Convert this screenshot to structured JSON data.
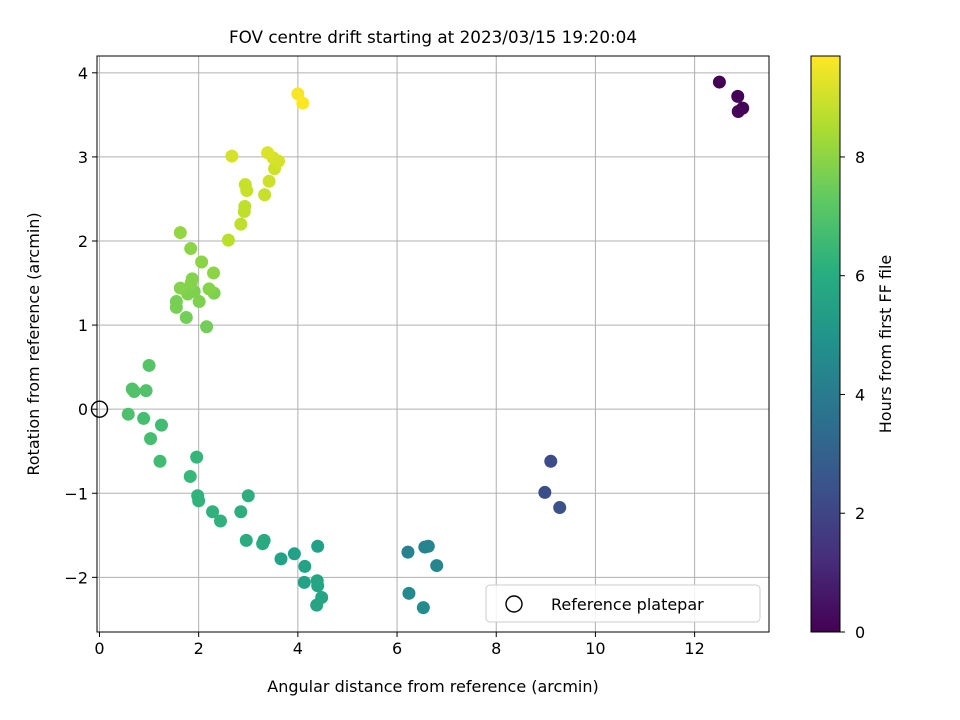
{
  "chart_data": {
    "type": "scatter",
    "title": "FOV centre drift starting at 2023/03/15 19:20:04",
    "xlabel": "Angular distance from reference (arcmin)",
    "ylabel": "Rotation from reference (arcmin)",
    "xlim": [
      -0.05,
      13.5
    ],
    "ylim": [
      -2.65,
      4.2
    ],
    "xticks": [
      0,
      2,
      4,
      6,
      8,
      10,
      12
    ],
    "yticks": [
      -2,
      -1,
      0,
      1,
      2,
      3,
      4
    ],
    "grid": true,
    "legend": {
      "placement": "lower-right",
      "entries": [
        "Reference platepar"
      ]
    },
    "reference_point": {
      "x": 0,
      "y": 0,
      "label": "Reference platepar"
    },
    "colorbar": {
      "label": "Hours from first FF file",
      "colormap": "viridis",
      "range": [
        0,
        9.7
      ],
      "ticks": [
        0,
        2,
        4,
        6,
        8
      ]
    },
    "points": [
      {
        "x": 12.5,
        "y": 3.89,
        "c": 0.0
      },
      {
        "x": 12.87,
        "y": 3.72,
        "c": 0.05
      },
      {
        "x": 12.97,
        "y": 3.58,
        "c": 0.1
      },
      {
        "x": 12.88,
        "y": 3.54,
        "c": 0.15
      },
      {
        "x": 9.1,
        "y": -0.62,
        "c": 2.2
      },
      {
        "x": 8.98,
        "y": -0.99,
        "c": 2.3
      },
      {
        "x": 9.28,
        "y": -1.17,
        "c": 2.4
      },
      {
        "x": 6.22,
        "y": -1.7,
        "c": 4.3
      },
      {
        "x": 6.56,
        "y": -1.64,
        "c": 4.4
      },
      {
        "x": 6.63,
        "y": -1.63,
        "c": 4.4
      },
      {
        "x": 6.8,
        "y": -1.86,
        "c": 4.5
      },
      {
        "x": 6.24,
        "y": -2.19,
        "c": 4.6
      },
      {
        "x": 6.53,
        "y": -2.36,
        "c": 4.7
      },
      {
        "x": 4.4,
        "y": -1.63,
        "c": 5.5
      },
      {
        "x": 3.93,
        "y": -1.72,
        "c": 5.5
      },
      {
        "x": 3.66,
        "y": -1.78,
        "c": 5.6
      },
      {
        "x": 4.14,
        "y": -1.87,
        "c": 5.6
      },
      {
        "x": 4.13,
        "y": -2.06,
        "c": 5.6
      },
      {
        "x": 4.39,
        "y": -2.04,
        "c": 5.7
      },
      {
        "x": 4.4,
        "y": -2.1,
        "c": 5.7
      },
      {
        "x": 4.48,
        "y": -2.24,
        "c": 5.7
      },
      {
        "x": 4.38,
        "y": -2.33,
        "c": 5.7
      },
      {
        "x": 3.32,
        "y": -1.56,
        "c": 5.9
      },
      {
        "x": 3.29,
        "y": -1.6,
        "c": 5.9
      },
      {
        "x": 2.96,
        "y": -1.56,
        "c": 6.0
      },
      {
        "x": 3.0,
        "y": -1.03,
        "c": 6.1
      },
      {
        "x": 2.85,
        "y": -1.22,
        "c": 6.1
      },
      {
        "x": 2.28,
        "y": -1.22,
        "c": 6.2
      },
      {
        "x": 2.44,
        "y": -1.33,
        "c": 6.2
      },
      {
        "x": 1.98,
        "y": -1.03,
        "c": 6.3
      },
      {
        "x": 2.0,
        "y": -1.09,
        "c": 6.3
      },
      {
        "x": 1.96,
        "y": -0.57,
        "c": 6.4
      },
      {
        "x": 1.83,
        "y": -0.8,
        "c": 6.5
      },
      {
        "x": 1.25,
        "y": -0.19,
        "c": 6.7
      },
      {
        "x": 1.22,
        "y": -0.62,
        "c": 6.7
      },
      {
        "x": 1.03,
        "y": -0.35,
        "c": 6.8
      },
      {
        "x": 0.89,
        "y": -0.11,
        "c": 6.8
      },
      {
        "x": 0.58,
        "y": -0.06,
        "c": 6.9
      },
      {
        "x": 0.94,
        "y": 0.22,
        "c": 7.0
      },
      {
        "x": 0.66,
        "y": 0.24,
        "c": 7.0
      },
      {
        "x": 0.7,
        "y": 0.21,
        "c": 7.0
      },
      {
        "x": 1.0,
        "y": 0.52,
        "c": 7.1
      },
      {
        "x": 2.16,
        "y": 0.98,
        "c": 7.6
      },
      {
        "x": 1.75,
        "y": 1.09,
        "c": 7.6
      },
      {
        "x": 1.55,
        "y": 1.21,
        "c": 7.7
      },
      {
        "x": 1.55,
        "y": 1.28,
        "c": 7.7
      },
      {
        "x": 2.01,
        "y": 1.28,
        "c": 7.8
      },
      {
        "x": 1.78,
        "y": 1.37,
        "c": 7.8
      },
      {
        "x": 2.31,
        "y": 1.38,
        "c": 7.8
      },
      {
        "x": 1.91,
        "y": 1.4,
        "c": 7.8
      },
      {
        "x": 2.21,
        "y": 1.43,
        "c": 7.9
      },
      {
        "x": 1.63,
        "y": 1.44,
        "c": 7.9
      },
      {
        "x": 1.85,
        "y": 1.5,
        "c": 7.9
      },
      {
        "x": 1.87,
        "y": 1.55,
        "c": 7.9
      },
      {
        "x": 2.3,
        "y": 1.62,
        "c": 8.0
      },
      {
        "x": 2.06,
        "y": 1.75,
        "c": 8.0
      },
      {
        "x": 1.84,
        "y": 1.91,
        "c": 8.0
      },
      {
        "x": 1.63,
        "y": 2.1,
        "c": 8.1
      },
      {
        "x": 2.6,
        "y": 2.01,
        "c": 8.7
      },
      {
        "x": 2.85,
        "y": 2.2,
        "c": 8.8
      },
      {
        "x": 2.92,
        "y": 2.35,
        "c": 8.8
      },
      {
        "x": 2.93,
        "y": 2.41,
        "c": 8.8
      },
      {
        "x": 3.33,
        "y": 2.55,
        "c": 8.9
      },
      {
        "x": 2.97,
        "y": 2.6,
        "c": 8.9
      },
      {
        "x": 2.94,
        "y": 2.67,
        "c": 8.9
      },
      {
        "x": 3.42,
        "y": 2.71,
        "c": 9.0
      },
      {
        "x": 3.53,
        "y": 2.86,
        "c": 9.0
      },
      {
        "x": 3.61,
        "y": 2.95,
        "c": 9.1
      },
      {
        "x": 3.5,
        "y": 2.99,
        "c": 9.1
      },
      {
        "x": 2.67,
        "y": 3.01,
        "c": 9.1
      },
      {
        "x": 3.39,
        "y": 3.05,
        "c": 9.2
      },
      {
        "x": 4.0,
        "y": 3.75,
        "c": 9.6
      },
      {
        "x": 4.1,
        "y": 3.64,
        "c": 9.7
      }
    ]
  }
}
